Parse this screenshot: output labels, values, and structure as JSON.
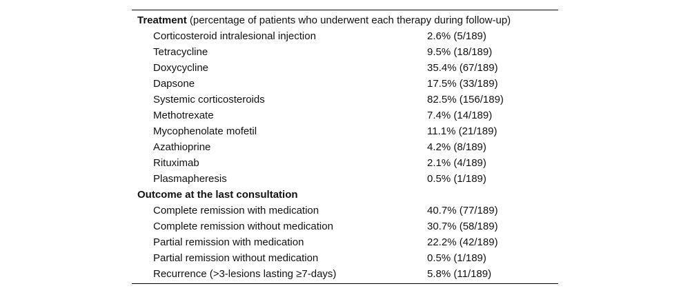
{
  "figure": {
    "background_color": "#ffffff",
    "rule_color": "#000000",
    "text_color": "#111111"
  },
  "table": {
    "sections": [
      {
        "title": "Treatment",
        "subtitle": " (percentage of patients who underwent each therapy during follow-up)",
        "rows": [
          {
            "label": "Corticosteroid intralesional injection",
            "value": "2.6% (5/189)"
          },
          {
            "label": "Tetracycline",
            "value": "9.5% (18/189)"
          },
          {
            "label": "Doxycycline",
            "value": "35.4% (67/189)"
          },
          {
            "label": "Dapsone",
            "value": "17.5% (33/189)"
          },
          {
            "label": "Systemic corticosteroids",
            "value": "82.5% (156/189)"
          },
          {
            "label": "Methotrexate",
            "value": "7.4% (14/189)"
          },
          {
            "label": "Mycophenolate mofetil",
            "value": "11.1% (21/189)"
          },
          {
            "label": "Azathioprine",
            "value": "4.2% (8/189)"
          },
          {
            "label": "Rituximab",
            "value": "2.1% (4/189)"
          },
          {
            "label": "Plasmapheresis",
            "value": "0.5% (1/189)"
          }
        ]
      },
      {
        "title": "Outcome at the last consultation",
        "subtitle": "",
        "rows": [
          {
            "label": "Complete remission with medication",
            "value": "40.7% (77/189)"
          },
          {
            "label": "Complete remission without medication",
            "value": "30.7% (58/189)"
          },
          {
            "label": "Partial remission with medication",
            "value": "22.2% (42/189)"
          },
          {
            "label": "Partial remission without medication",
            "value": "0.5% (1/189)"
          },
          {
            "label": "Recurrence (>3-lesions lasting ≥7-days)",
            "value": "5.8% (11/189)"
          }
        ]
      }
    ]
  }
}
